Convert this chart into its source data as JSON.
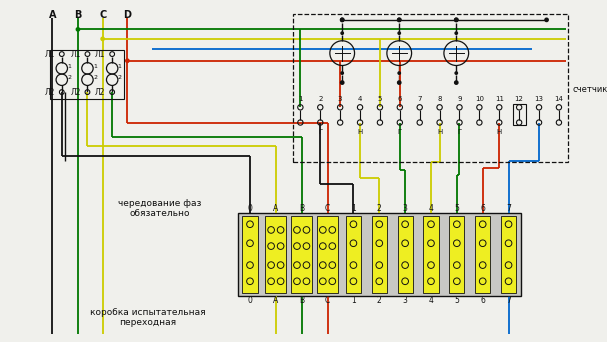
{
  "bg": "#f0f0ec",
  "BK": "#111111",
  "RD": "#cc2200",
  "GR": "#007700",
  "YL": "#cccc00",
  "BL": "#0066cc",
  "figsize": [
    6.07,
    3.42
  ],
  "dpi": 100,
  "t_A": "A",
  "t_B": "B",
  "t_C": "C",
  "t_D": "D",
  "t_L1": "Л1",
  "t_L2": "Л2",
  "t_meter": "счетчик",
  "t_phase": "чередование фаз\nобязательно",
  "t_box": "коробка испытательная\nпереходная",
  "t_G": "Г",
  "t_N": "Н",
  "meter_terms": [
    "1",
    "2",
    "3",
    "4",
    "5",
    "6",
    "7",
    "8",
    "9",
    "10",
    "11",
    "12",
    "13",
    "14"
  ],
  "box_terms": [
    "0",
    "A",
    "B",
    "C",
    "1",
    "2",
    "3",
    "4",
    "5",
    "6",
    "7"
  ]
}
